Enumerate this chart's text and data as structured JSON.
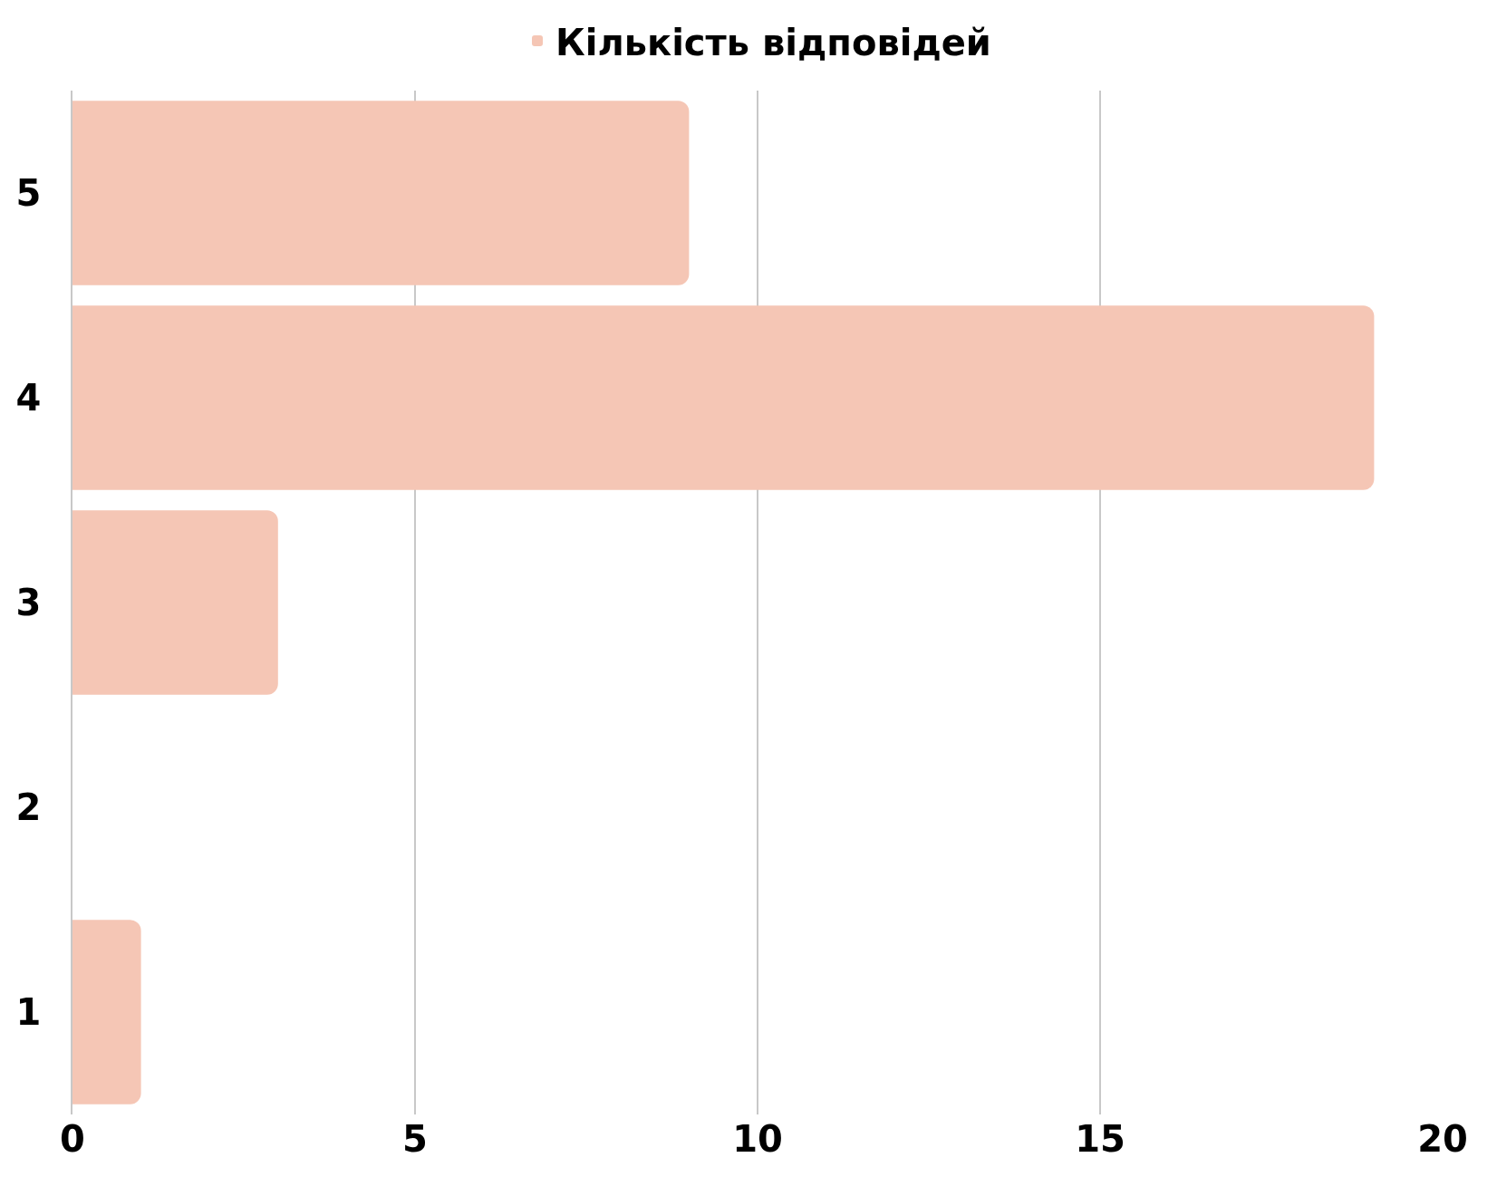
{
  "chart_data": {
    "type": "bar",
    "orientation": "horizontal",
    "categories": [
      "5",
      "4",
      "3",
      "2",
      "1"
    ],
    "series": [
      {
        "name": "Кількість відповідей",
        "color": "#f5c6b5",
        "values": [
          9,
          19,
          3,
          0,
          1
        ]
      }
    ],
    "xlim": [
      0,
      20
    ],
    "xticks": [
      0,
      5,
      10,
      15,
      20
    ],
    "grid": "x",
    "legend": "top"
  }
}
